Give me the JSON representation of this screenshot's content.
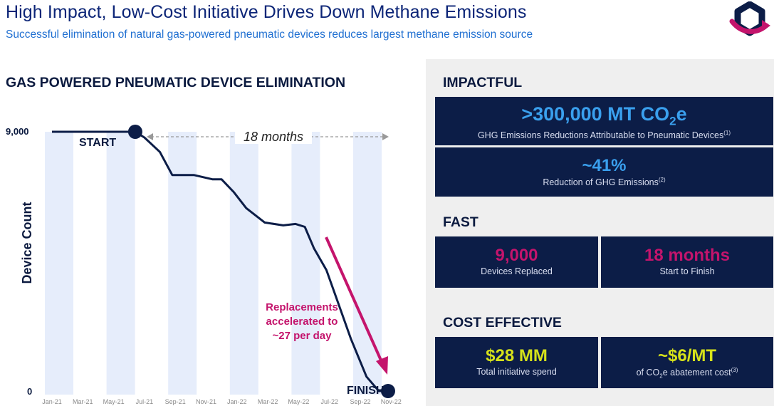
{
  "header": {
    "title": "High Impact, Low-Cost Initiative Drives Down Methane Emissions",
    "subtitle": "Successful elimination of natural gas-powered pneumatic devices reduces largest methane emission source"
  },
  "left": {
    "section_title": "GAS POWERED PNEUMATIC DEVICE ELIMINATION"
  },
  "chart_data": {
    "type": "line",
    "title": "GAS POWERED PNEUMATIC DEVICE ELIMINATION",
    "ylabel": "Device Count",
    "xlabel": "",
    "ylim": [
      0,
      9000
    ],
    "y_ticks": [
      "9,000",
      "0"
    ],
    "categories": [
      "Jan-21",
      "Mar-21",
      "May-21",
      "Jul-21",
      "Sep-21",
      "Nov-21",
      "Jan-22",
      "Mar-22",
      "May-22",
      "Jul-22",
      "Sep-22",
      "Nov-22"
    ],
    "series": [
      {
        "name": "Device Count",
        "x": [
          0,
          1,
          2,
          2.7,
          3,
          3.5,
          3.9,
          4.2,
          4.6,
          4.8,
          5.2,
          5.5,
          5.9,
          6.3,
          6.9,
          7.5,
          7.9,
          8.2,
          8.5,
          8.9,
          9.2,
          9.7,
          10.2,
          10.6,
          10.9
        ],
        "values": [
          9000,
          9000,
          9000,
          9000,
          8800,
          8300,
          7500,
          7500,
          7500,
          7450,
          7350,
          7350,
          6900,
          6350,
          5850,
          5750,
          5800,
          5700,
          4950,
          4200,
          3300,
          1800,
          500,
          0,
          0
        ]
      }
    ],
    "annotations": {
      "start_label": "START",
      "finish_label": "FINISH",
      "duration_label": "18 months",
      "acceleration_note": [
        "Replacements",
        "accelerated to",
        "~27 per day"
      ]
    }
  },
  "panel": {
    "impactful": {
      "heading": "IMPACTFUL",
      "metric1_prefix": ">300,000 MT CO",
      "metric1_sub": "2",
      "metric1_suffix": "e",
      "metric1_desc": "GHG Emissions Reductions Attributable to Pneumatic Devices",
      "metric1_note": "(1)",
      "metric2_value": "~41%",
      "metric2_desc": "Reduction of GHG Emissions",
      "metric2_note": "(2)"
    },
    "fast": {
      "heading": "FAST",
      "metric1_value": "9,000",
      "metric1_desc": "Devices Replaced",
      "metric2_value": "18 months",
      "metric2_desc": "Start to Finish"
    },
    "cost": {
      "heading": "COST EFFECTIVE",
      "metric1_value": "$28 MM",
      "metric1_desc": "Total initiative spend",
      "metric2_value": "~$6/MT",
      "metric2_desc_prefix": "of CO",
      "metric2_desc_sub": "2",
      "metric2_desc_suffix": "e abatement cost",
      "metric2_note": "(3)"
    }
  },
  "colors": {
    "navy": "#0c1d47",
    "title_blue": "#0c2577",
    "accent_blue": "#3aa0ee",
    "magenta": "#c4146c",
    "lime": "#d6e21a",
    "band": "#e6edfb"
  }
}
